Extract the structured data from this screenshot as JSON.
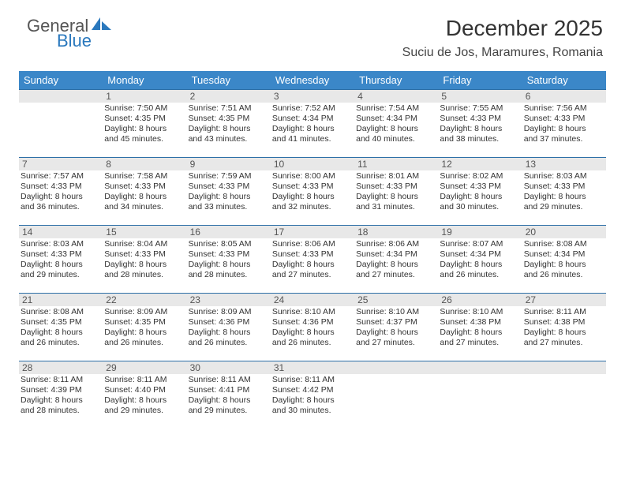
{
  "brand": {
    "line1": "General",
    "line2": "Blue"
  },
  "title": "December 2025",
  "location": "Suciu de Jos, Maramures, Romania",
  "weekdays": [
    "Sunday",
    "Monday",
    "Tuesday",
    "Wednesday",
    "Thursday",
    "Friday",
    "Saturday"
  ],
  "header_bg": "#3b87c8",
  "header_fg": "#ffffff",
  "daynum_bg": "#e8e8e8",
  "day_border": "#2d6fa7",
  "first_weekday_offset": 1,
  "days": [
    {
      "n": 1,
      "sr": "7:50 AM",
      "ss": "4:35 PM",
      "dl": "8 hours and 45 minutes."
    },
    {
      "n": 2,
      "sr": "7:51 AM",
      "ss": "4:35 PM",
      "dl": "8 hours and 43 minutes."
    },
    {
      "n": 3,
      "sr": "7:52 AM",
      "ss": "4:34 PM",
      "dl": "8 hours and 41 minutes."
    },
    {
      "n": 4,
      "sr": "7:54 AM",
      "ss": "4:34 PM",
      "dl": "8 hours and 40 minutes."
    },
    {
      "n": 5,
      "sr": "7:55 AM",
      "ss": "4:33 PM",
      "dl": "8 hours and 38 minutes."
    },
    {
      "n": 6,
      "sr": "7:56 AM",
      "ss": "4:33 PM",
      "dl": "8 hours and 37 minutes."
    },
    {
      "n": 7,
      "sr": "7:57 AM",
      "ss": "4:33 PM",
      "dl": "8 hours and 36 minutes."
    },
    {
      "n": 8,
      "sr": "7:58 AM",
      "ss": "4:33 PM",
      "dl": "8 hours and 34 minutes."
    },
    {
      "n": 9,
      "sr": "7:59 AM",
      "ss": "4:33 PM",
      "dl": "8 hours and 33 minutes."
    },
    {
      "n": 10,
      "sr": "8:00 AM",
      "ss": "4:33 PM",
      "dl": "8 hours and 32 minutes."
    },
    {
      "n": 11,
      "sr": "8:01 AM",
      "ss": "4:33 PM",
      "dl": "8 hours and 31 minutes."
    },
    {
      "n": 12,
      "sr": "8:02 AM",
      "ss": "4:33 PM",
      "dl": "8 hours and 30 minutes."
    },
    {
      "n": 13,
      "sr": "8:03 AM",
      "ss": "4:33 PM",
      "dl": "8 hours and 29 minutes."
    },
    {
      "n": 14,
      "sr": "8:03 AM",
      "ss": "4:33 PM",
      "dl": "8 hours and 29 minutes."
    },
    {
      "n": 15,
      "sr": "8:04 AM",
      "ss": "4:33 PM",
      "dl": "8 hours and 28 minutes."
    },
    {
      "n": 16,
      "sr": "8:05 AM",
      "ss": "4:33 PM",
      "dl": "8 hours and 28 minutes."
    },
    {
      "n": 17,
      "sr": "8:06 AM",
      "ss": "4:33 PM",
      "dl": "8 hours and 27 minutes."
    },
    {
      "n": 18,
      "sr": "8:06 AM",
      "ss": "4:34 PM",
      "dl": "8 hours and 27 minutes."
    },
    {
      "n": 19,
      "sr": "8:07 AM",
      "ss": "4:34 PM",
      "dl": "8 hours and 26 minutes."
    },
    {
      "n": 20,
      "sr": "8:08 AM",
      "ss": "4:34 PM",
      "dl": "8 hours and 26 minutes."
    },
    {
      "n": 21,
      "sr": "8:08 AM",
      "ss": "4:35 PM",
      "dl": "8 hours and 26 minutes."
    },
    {
      "n": 22,
      "sr": "8:09 AM",
      "ss": "4:35 PM",
      "dl": "8 hours and 26 minutes."
    },
    {
      "n": 23,
      "sr": "8:09 AM",
      "ss": "4:36 PM",
      "dl": "8 hours and 26 minutes."
    },
    {
      "n": 24,
      "sr": "8:10 AM",
      "ss": "4:36 PM",
      "dl": "8 hours and 26 minutes."
    },
    {
      "n": 25,
      "sr": "8:10 AM",
      "ss": "4:37 PM",
      "dl": "8 hours and 27 minutes."
    },
    {
      "n": 26,
      "sr": "8:10 AM",
      "ss": "4:38 PM",
      "dl": "8 hours and 27 minutes."
    },
    {
      "n": 27,
      "sr": "8:11 AM",
      "ss": "4:38 PM",
      "dl": "8 hours and 27 minutes."
    },
    {
      "n": 28,
      "sr": "8:11 AM",
      "ss": "4:39 PM",
      "dl": "8 hours and 28 minutes."
    },
    {
      "n": 29,
      "sr": "8:11 AM",
      "ss": "4:40 PM",
      "dl": "8 hours and 29 minutes."
    },
    {
      "n": 30,
      "sr": "8:11 AM",
      "ss": "4:41 PM",
      "dl": "8 hours and 29 minutes."
    },
    {
      "n": 31,
      "sr": "8:11 AM",
      "ss": "4:42 PM",
      "dl": "8 hours and 30 minutes."
    }
  ],
  "labels": {
    "sunrise": "Sunrise:",
    "sunset": "Sunset:",
    "daylight": "Daylight:"
  }
}
